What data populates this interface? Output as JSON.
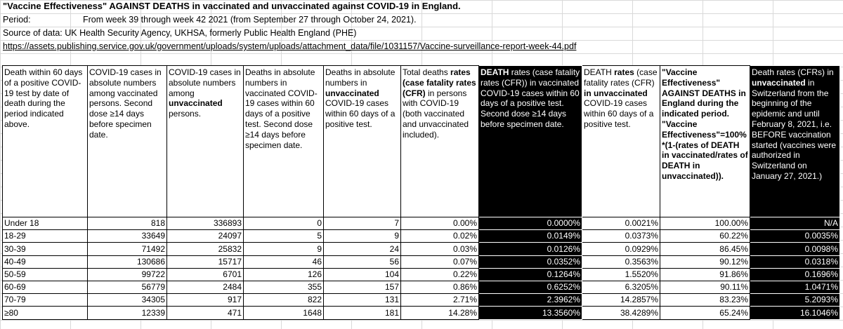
{
  "title": "\"Vaccine Effectiveness\" AGAINST DEATHS in vaccinated and unvaccinated against COVID-19 in England.",
  "period_label": "Period:",
  "period_text": "From week 39 through week 42 2021 (from September 27 through October 24, 2021).",
  "source": "Source of data: UK Health Security Agency, UKHSA, formerly Public Health England (PHE)",
  "link": "https://assets.publishing.service.gov.uk/government/uploads/system/uploads/attachment_data/file/1031157/Vaccine-surveillance-report-week-44.pdf",
  "headers": {
    "h1": "Death within 60 days of a positive COVID-19 test by date of death during the period indicated above.",
    "h2a": "COVID-19 cases in absolute numbers among vaccinated persons. Second dose ≥14 days before specimen date.",
    "h3a": "COVID-19 cases in absolute numbers among ",
    "h3b": "unvaccinated",
    "h3c": " persons.",
    "h4": "Deaths in absolute numbers in vaccinated COVID-19 cases within 60 days of a positive test. Second dose ≥14 days before specimen date.",
    "h5a": "Deaths in absolute numbers in ",
    "h5b": "unvaccinated",
    "h5c": " COVID-19 cases within 60 days of a positive test.",
    "h6a": "Total deaths ",
    "h6b": "rates (case fatality rates (CFR)",
    "h6c": " in persons with COVID-19 (both vaccinated and unvaccinated included).",
    "h7a": "DEATH",
    "h7b": " rates (case fatality rates (CFR)) in vaccinated COVID-19 cases within 60 days of a positive test. Second dose ≥14 days before specimen date.",
    "h8a": "DEATH ",
    "h8b": "rates",
    "h8c": " (case fatality rates (CFR) ",
    "h8d": "in unvaccinated",
    "h8e": " COVID-19 cases within 60 days of a positive test.",
    "h9": "\"Vaccine Effectiveness\" AGAINST DEATHS in England during the indicated period. \"Vaccine Effectiveness\"=100% *(1-(rates of DEATH in vaccinated/rates of DEATH in unvaccinated)).",
    "h10a": "Death rates (CFRs) in ",
    "h10b": "unvaccinated",
    "h10c": " in Switzerland from the beginning of the epidemic and until February 8, 2021, i.e. BEFORE vaccination started (vaccines were authorized in Switzerland on January 27, 2021.)"
  },
  "rows": [
    {
      "age": "Under 18",
      "vax_cases": "818",
      "unvax_cases": "336893",
      "vax_deaths": "0",
      "unvax_deaths": "7",
      "total_rate": "0.00%",
      "vax_rate": "0.0000%",
      "unvax_rate": "0.0021%",
      "ve": "100.00%",
      "swiss": "N/A"
    },
    {
      "age": "18-29",
      "vax_cases": "33649",
      "unvax_cases": "24097",
      "vax_deaths": "5",
      "unvax_deaths": "9",
      "total_rate": "0.02%",
      "vax_rate": "0.0149%",
      "unvax_rate": "0.0373%",
      "ve": "60.22%",
      "swiss": "0.0035%"
    },
    {
      "age": "30-39",
      "vax_cases": "71492",
      "unvax_cases": "25832",
      "vax_deaths": "9",
      "unvax_deaths": "24",
      "total_rate": "0.03%",
      "vax_rate": "0.0126%",
      "unvax_rate": "0.0929%",
      "ve": "86.45%",
      "swiss": "0.0098%"
    },
    {
      "age": "40-49",
      "vax_cases": "130686",
      "unvax_cases": "15717",
      "vax_deaths": "46",
      "unvax_deaths": "56",
      "total_rate": "0.07%",
      "vax_rate": "0.0352%",
      "unvax_rate": "0.3563%",
      "ve": "90.12%",
      "swiss": "0.0318%"
    },
    {
      "age": "50-59",
      "vax_cases": "99722",
      "unvax_cases": "6701",
      "vax_deaths": "126",
      "unvax_deaths": "104",
      "total_rate": "0.22%",
      "vax_rate": "0.1264%",
      "unvax_rate": "1.5520%",
      "ve": "91.86%",
      "swiss": "0.1696%"
    },
    {
      "age": "60-69",
      "vax_cases": "56779",
      "unvax_cases": "2484",
      "vax_deaths": "355",
      "unvax_deaths": "157",
      "total_rate": "0.86%",
      "vax_rate": "0.6252%",
      "unvax_rate": "6.3205%",
      "ve": "90.11%",
      "swiss": "1.0471%"
    },
    {
      "age": "70-79",
      "vax_cases": "34305",
      "unvax_cases": "917",
      "vax_deaths": "822",
      "unvax_deaths": "131",
      "total_rate": "2.71%",
      "vax_rate": "2.3962%",
      "unvax_rate": "14.2857%",
      "ve": "83.23%",
      "swiss": "5.2093%"
    },
    {
      "age": "≥80",
      "vax_cases": "12339",
      "unvax_cases": "471",
      "vax_deaths": "1648",
      "unvax_deaths": "181",
      "total_rate": "14.28%",
      "vax_rate": "13.3560%",
      "unvax_rate": "38.4289%",
      "ve": "65.24%",
      "swiss": "16.1046%"
    }
  ]
}
